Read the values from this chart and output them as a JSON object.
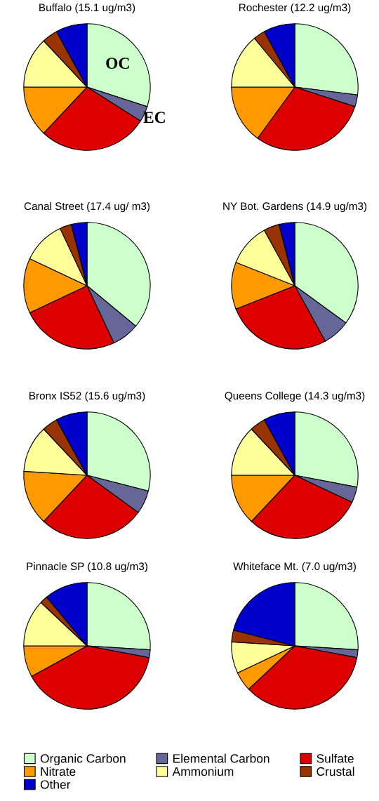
{
  "chart_data": [
    {
      "type": "pie",
      "title": "Buffalo (15.1 ug/m3)",
      "categories": [
        "Organic Carbon",
        "Elemental Carbon",
        "Sulfate",
        "Nitrate",
        "Ammonium",
        "Crustal",
        "Other"
      ],
      "values": [
        30,
        4,
        28,
        13,
        13,
        4,
        8
      ],
      "colors": [
        "#ccffcc",
        "#666699",
        "#dd0000",
        "#ff9900",
        "#ffff99",
        "#993300",
        "#0000cc"
      ],
      "annotations": [
        "OC",
        "EC"
      ],
      "legend": "bottom"
    },
    {
      "type": "pie",
      "title": "Rochester (12.2 ug/m3)",
      "values": [
        27,
        3,
        30,
        15,
        14,
        3,
        8
      ],
      "colors": [
        "#ccffcc",
        "#666699",
        "#dd0000",
        "#ff9900",
        "#ffff99",
        "#993300",
        "#0000cc"
      ]
    },
    {
      "type": "pie",
      "title": "Canal Street (17.4 ug/ m3)",
      "values": [
        36,
        7,
        25,
        14,
        11,
        3,
        4
      ],
      "colors": [
        "#ccffcc",
        "#666699",
        "#dd0000",
        "#ff9900",
        "#ffff99",
        "#993300",
        "#0000cc"
      ]
    },
    {
      "type": "pie",
      "title": "NY Bot. Gardens (14.9 ug/m3)",
      "values": [
        35,
        7,
        27,
        12,
        11,
        4,
        4
      ],
      "colors": [
        "#ccffcc",
        "#666699",
        "#dd0000",
        "#ff9900",
        "#ffff99",
        "#993300",
        "#0000cc"
      ]
    },
    {
      "type": "pie",
      "title": "Bronx IS52 (15.6 ug/m3)",
      "values": [
        29,
        6,
        27,
        14,
        12,
        4,
        8
      ],
      "colors": [
        "#ccffcc",
        "#666699",
        "#dd0000",
        "#ff9900",
        "#ffff99",
        "#993300",
        "#0000cc"
      ]
    },
    {
      "type": "pie",
      "title": "Queens College (14.3 ug/m3)",
      "values": [
        28,
        4,
        30,
        13,
        13,
        4,
        8
      ],
      "colors": [
        "#ccffcc",
        "#666699",
        "#dd0000",
        "#ff9900",
        "#ffff99",
        "#993300",
        "#0000cc"
      ]
    },
    {
      "type": "pie",
      "title": "Pinnacle SP (10.8 ug/m3)",
      "values": [
        26,
        2,
        39,
        8,
        12,
        2,
        11
      ],
      "colors": [
        "#ccffcc",
        "#666699",
        "#dd0000",
        "#ff9900",
        "#ffff99",
        "#993300",
        "#0000cc"
      ]
    },
    {
      "type": "pie",
      "title": "Whiteface Mt. (7.0 ug/m3)",
      "values": [
        26,
        2,
        35,
        5,
        8,
        3,
        21
      ],
      "colors": [
        "#ccffcc",
        "#666699",
        "#dd0000",
        "#ff9900",
        "#ffff99",
        "#993300",
        "#0000cc"
      ]
    }
  ]
}
